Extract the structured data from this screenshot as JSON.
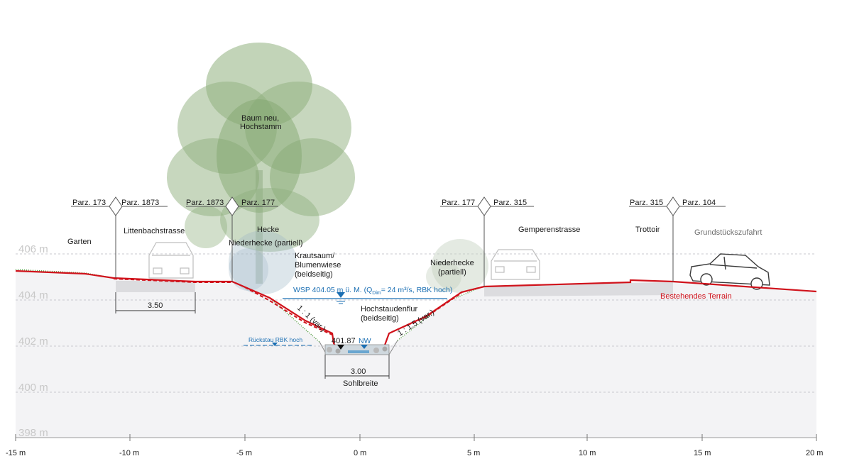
{
  "elevations": [
    "406 m",
    "404 m",
    "402 m",
    "400 m",
    "398 m"
  ],
  "x_ticks": [
    "-15 m",
    "-10 m",
    "-5 m",
    "0 m",
    "5 m",
    "10 m",
    "15 m",
    "20 m"
  ],
  "parcels": [
    {
      "left": "Parz. 173",
      "right": "Parz. 1873"
    },
    {
      "left": "Parz. 1873",
      "right": "Parz. 177"
    },
    {
      "left": "Parz. 177",
      "right": "Parz. 315"
    },
    {
      "left": "Parz. 315",
      "right": "Parz. 104"
    }
  ],
  "labels": {
    "garten": "Garten",
    "littenbach": "Littenbachstrasse",
    "tree_1": "Baum neu,",
    "tree_2": "Hochstamm",
    "hecke": "Hecke",
    "niederhecke_left": "Niederhecke (partiell)",
    "kraut_1": "Krautsaum/",
    "kraut_2": "Blumenwiese",
    "kraut_3": "(beidseitig)",
    "niederhecke_right_1": "Niederhecke",
    "niederhecke_right_2": "(partiell)",
    "gemperen": "Gemperenstrasse",
    "trottoir": "Trottoir",
    "grund": "Grundstückszufahrt",
    "hochstauden_1": "Hochstaudenflur",
    "hochstauden_2": "(beidseitig)",
    "terrain": "Bestehendes Terrain",
    "wsp_prefix": "WSP 404.05 m ü. M. (Q",
    "wsp_sub": "Dim",
    "wsp_suffix": "= 24 m³/s, RBK hoch)",
    "rueckstau": "Rückstau RBK hoch",
    "nw": "NW",
    "sohle_kote": "401.87",
    "slope_left": "1 : 1 (var.)",
    "slope_right": "1 : 1.5 (var.)"
  },
  "dimensions": {
    "road_width": "3.50",
    "bed_width": "3.00",
    "bed_label": "Sohlbreite"
  },
  "colors": {
    "terrain_red": "#d0121b",
    "water_blue": "#1b6fb3",
    "ground_fill": "#f3f3f5",
    "tree_green": "#8fb07e",
    "grass_green": "#4f9a3a"
  }
}
